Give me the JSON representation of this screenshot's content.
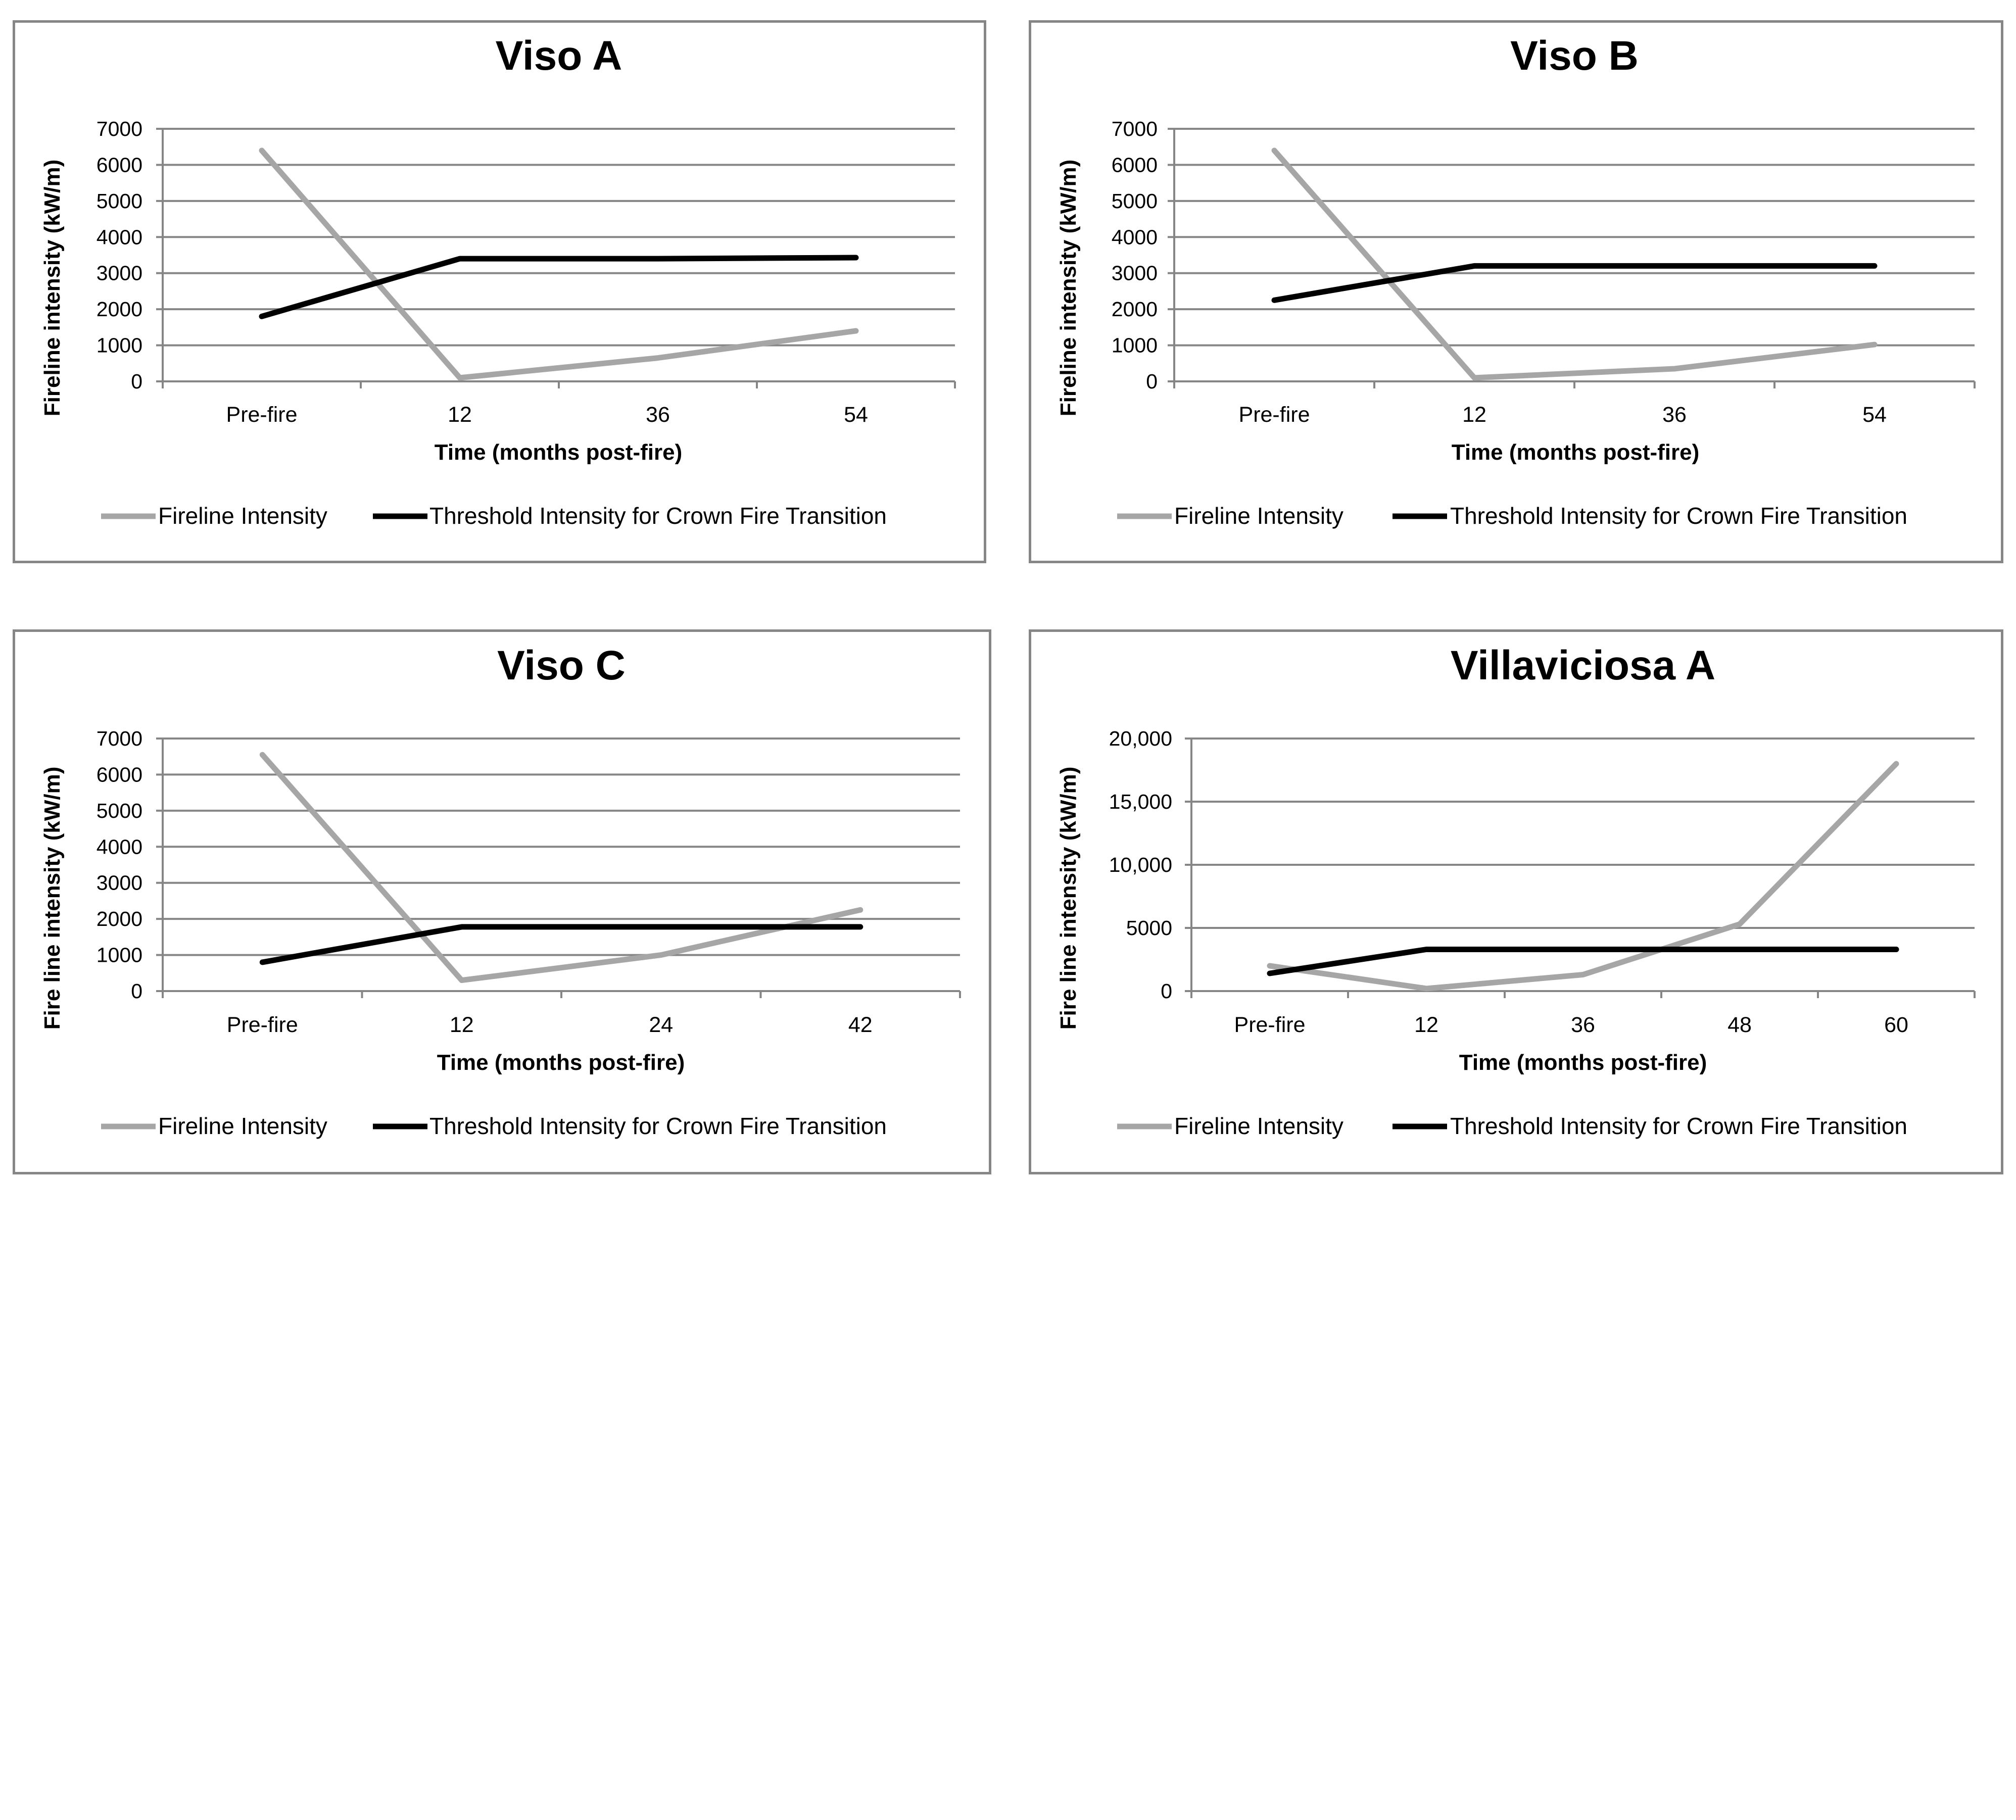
{
  "colors": {
    "fireline": "#a6a6a6",
    "threshold": "#000000",
    "grid": "#868686",
    "border": "#868686"
  },
  "chart_data": [
    {
      "type": "line",
      "title": "Viso A",
      "xlabel": "Time (months post-fire)",
      "ylabel": "Fireline intensity (kW/m)",
      "categories": [
        "Pre-fire",
        "12",
        "36",
        "54"
      ],
      "yticks": [
        "0",
        "1000",
        "2000",
        "3000",
        "4000",
        "5000",
        "6000",
        "7000"
      ],
      "ylim": [
        0,
        7000
      ],
      "series": [
        {
          "name": "Fireline Intensity",
          "color": "#a6a6a6",
          "values": [
            6400,
            100,
            650,
            1400
          ]
        },
        {
          "name": "Threshold Intensity for Crown Fire Transition",
          "color": "#000000",
          "values": [
            1800,
            3400,
            3400,
            3430
          ]
        }
      ]
    },
    {
      "type": "line",
      "title": "Viso B",
      "xlabel": "Time (months post-fire)",
      "ylabel": "Fireline intensity (kW/m)",
      "categories": [
        "Pre-fire",
        "12",
        "36",
        "54"
      ],
      "yticks": [
        "0",
        "1000",
        "2000",
        "3000",
        "4000",
        "5000",
        "6000",
        "7000"
      ],
      "ylim": [
        0,
        7000
      ],
      "series": [
        {
          "name": "Fireline Intensity",
          "color": "#a6a6a6",
          "values": [
            6400,
            100,
            350,
            1020
          ]
        },
        {
          "name": "Threshold Intensity for Crown Fire Transition",
          "color": "#000000",
          "values": [
            2250,
            3200,
            3200,
            3200
          ]
        }
      ]
    },
    {
      "type": "line",
      "title": "Viso C",
      "xlabel": "Time (months post-fire)",
      "ylabel": "Fire line intensity (kW/m)",
      "categories": [
        "Pre-fire",
        "12",
        "24",
        "42"
      ],
      "yticks": [
        "0",
        "1000",
        "2000",
        "3000",
        "4000",
        "5000",
        "6000",
        "7000"
      ],
      "ylim": [
        0,
        7000
      ],
      "series": [
        {
          "name": "Fireline Intensity",
          "color": "#a6a6a6",
          "values": [
            6550,
            300,
            1000,
            2250
          ]
        },
        {
          "name": "Threshold Intensity for Crown Fire Transition",
          "color": "#000000",
          "values": [
            800,
            1780,
            1780,
            1780
          ]
        }
      ]
    },
    {
      "type": "line",
      "title": "Villaviciosa A",
      "xlabel": "Time (months post-fire)",
      "ylabel": "Fire line intensity (kW/m)",
      "categories": [
        "Pre-fire",
        "12",
        "36",
        "48",
        "60"
      ],
      "yticks": [
        "0",
        "5000",
        "10,000",
        "15,000",
        "20,000"
      ],
      "ylim": [
        0,
        20000
      ],
      "series": [
        {
          "name": "Fireline Intensity",
          "color": "#a6a6a6",
          "values": [
            2000,
            200,
            1300,
            5300,
            18000
          ]
        },
        {
          "name": "Threshold Intensity for Crown Fire Transition",
          "color": "#000000",
          "values": [
            1400,
            3300,
            3300,
            3300,
            3300
          ]
        }
      ]
    }
  ]
}
